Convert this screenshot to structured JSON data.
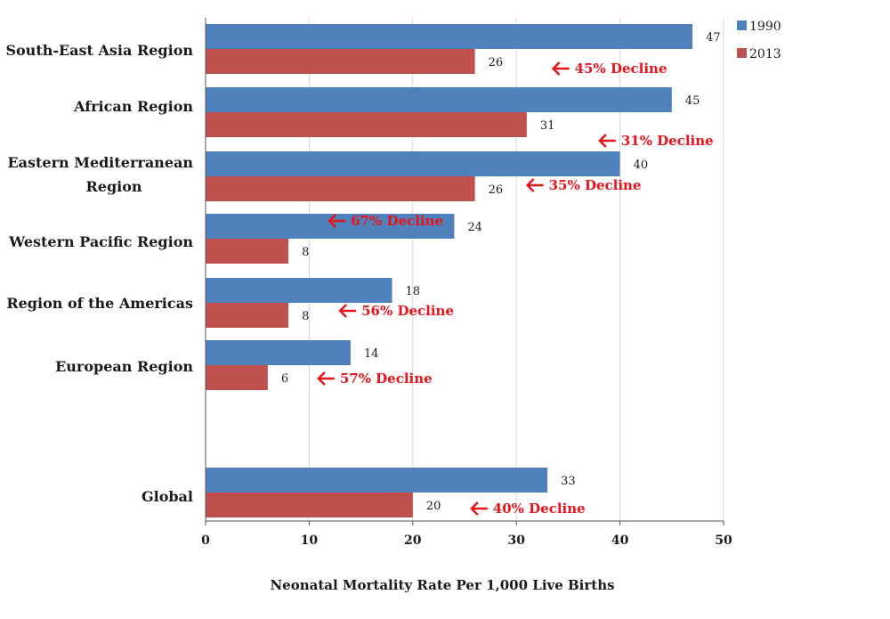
{
  "chart_data": {
    "type": "bar",
    "orientation": "horizontal",
    "categories": [
      "South-East Asia Region",
      "African Region",
      "Eastern Mediterranean Region",
      "Western Pacific Region",
      "Region of the Americas",
      "European Region",
      "Global"
    ],
    "series": [
      {
        "name": "1990",
        "color": "#4f81bd",
        "values": [
          47,
          45,
          40,
          24,
          18,
          14,
          33
        ]
      },
      {
        "name": "2013",
        "color": "#c0504d",
        "values": [
          26,
          31,
          26,
          8,
          8,
          6,
          20
        ]
      }
    ],
    "annotations": [
      "45% Decline",
      "31% Decline",
      "35% Decline",
      "67% Decline",
      "56% Decline",
      "57% Decline",
      "40% Decline"
    ],
    "annotation_color": "#e8131b",
    "xlabel": "Neonatal Mortality Rate Per 1,000 Live Births",
    "ylabel": "",
    "xlim": [
      0,
      50
    ],
    "x_ticks": [
      0,
      10,
      20,
      30,
      40,
      50
    ],
    "grid": "vertical",
    "legend_position": "top-right"
  }
}
